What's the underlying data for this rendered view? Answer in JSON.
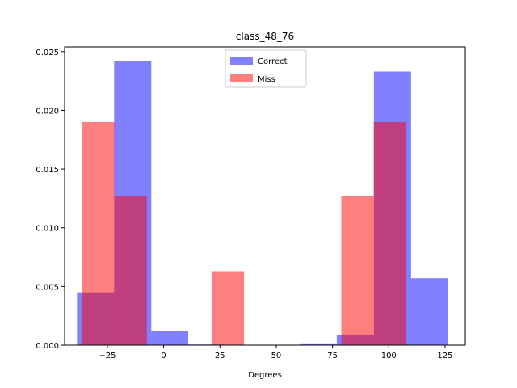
{
  "chart_data": {
    "type": "bar",
    "title": "class_48_76",
    "xlabel": "Degrees",
    "ylabel": "",
    "xlim": [
      -44,
      134
    ],
    "ylim": [
      0,
      0.0254
    ],
    "xticks": [
      -25,
      0,
      25,
      50,
      75,
      100,
      125
    ],
    "xtick_labels": [
      "−25",
      "0",
      "25",
      "50",
      "75",
      "100",
      "125"
    ],
    "yticks": [
      0.0,
      0.005,
      0.01,
      0.015,
      0.02,
      0.025
    ],
    "ytick_labels": [
      "0.000",
      "0.005",
      "0.010",
      "0.015",
      "0.020",
      "0.025"
    ],
    "legend_position": "upper center",
    "series": [
      {
        "name": "Correct",
        "color": "#0000ff",
        "opacity": 0.5,
        "bins": [
          {
            "x0": -38.5,
            "x1": -22.0,
            "value": 0.0045
          },
          {
            "x0": -22.0,
            "x1": -5.5,
            "value": 0.0242
          },
          {
            "x0": -5.5,
            "x1": 10.9,
            "value": 0.0012
          },
          {
            "x0": 10.9,
            "x1": 27.4,
            "value": 5e-05
          },
          {
            "x0": 27.4,
            "x1": 43.9,
            "value": 0.0
          },
          {
            "x0": 43.9,
            "x1": 60.4,
            "value": 0.0
          },
          {
            "x0": 60.4,
            "x1": 76.9,
            "value": 0.00015
          },
          {
            "x0": 76.9,
            "x1": 93.4,
            "value": 0.0009
          },
          {
            "x0": 93.4,
            "x1": 109.9,
            "value": 0.0233
          },
          {
            "x0": 109.9,
            "x1": 126.4,
            "value": 0.0057
          }
        ]
      },
      {
        "name": "Miss",
        "color": "#ff0000",
        "opacity": 0.5,
        "bins": [
          {
            "x0": -36.3,
            "x1": -21.9,
            "value": 0.019
          },
          {
            "x0": -21.9,
            "x1": -7.5,
            "value": 0.0127
          },
          {
            "x0": -7.5,
            "x1": 6.9,
            "value": 0.0
          },
          {
            "x0": 6.9,
            "x1": 21.3,
            "value": 0.0
          },
          {
            "x0": 21.3,
            "x1": 35.7,
            "value": 0.0063
          },
          {
            "x0": 35.7,
            "x1": 50.1,
            "value": 0.0
          },
          {
            "x0": 50.1,
            "x1": 64.5,
            "value": 0.0
          },
          {
            "x0": 64.5,
            "x1": 78.9,
            "value": 0.0
          },
          {
            "x0": 78.9,
            "x1": 93.3,
            "value": 0.0127
          },
          {
            "x0": 93.3,
            "x1": 107.7,
            "value": 0.019
          }
        ]
      }
    ]
  }
}
